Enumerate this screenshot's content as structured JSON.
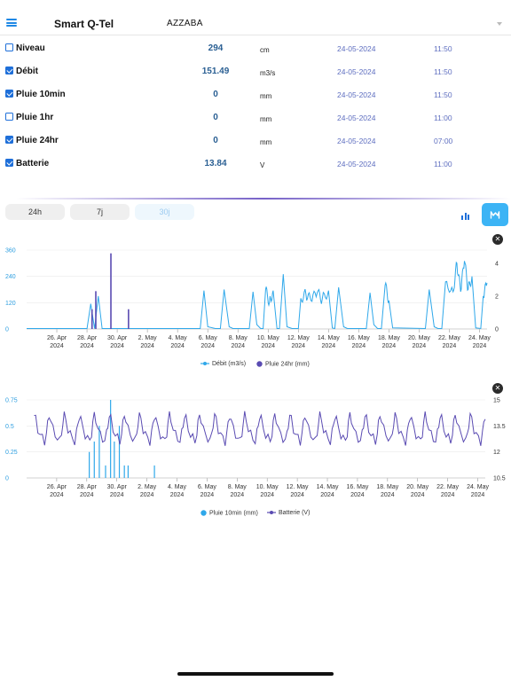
{
  "app": {
    "title": "Smart Q-Tel",
    "station": "AZZABA"
  },
  "sensors": [
    {
      "name": "Niveau",
      "checked": false,
      "value": "294",
      "unit": "cm",
      "date": "24-05-2024",
      "time": "11:50"
    },
    {
      "name": "Débit",
      "checked": true,
      "value": "151.49",
      "unit": "m3/s",
      "date": "24-05-2024",
      "time": "11:50"
    },
    {
      "name": "Pluie 10min",
      "checked": true,
      "value": "0",
      "unit": "mm",
      "date": "24-05-2024",
      "time": "11:50"
    },
    {
      "name": "Pluie 1hr",
      "checked": false,
      "value": "0",
      "unit": "mm",
      "date": "24-05-2024",
      "time": "11:00"
    },
    {
      "name": "Pluie 24hr",
      "checked": true,
      "value": "0",
      "unit": "mm",
      "date": "24-05-2024",
      "time": "07:00"
    },
    {
      "name": "Batterie",
      "checked": true,
      "value": "13.84",
      "unit": "V",
      "date": "24-05-2024",
      "time": "11:00"
    }
  ],
  "periods": {
    "p24h": "24h",
    "p7j": "7j",
    "p30j": "30j",
    "selected": "30j"
  },
  "view_mode": "line",
  "close_label": "✕",
  "colors": {
    "accent": "#1e6fd9",
    "debit": "#2fa8ea",
    "pluie24": "#5a4bb2",
    "pluie10": "#2fa8ea",
    "batterie": "#5a4bb2"
  },
  "chart_data": [
    {
      "type": "line",
      "x_ticks": [
        "26. Apr 2024",
        "28. Apr 2024",
        "30. Apr 2024",
        "2. May 2024",
        "4. May 2024",
        "6. May 2024",
        "8. May 2024",
        "10. May 2024",
        "12. May 2024",
        "14. May 2024",
        "16. May 2024",
        "18. May 2024",
        "20. May 2024",
        "22. May 2024",
        "24. May 2024"
      ],
      "x_range": [
        "2024-04-24T00:00",
        "2024-05-24T12:00"
      ],
      "y_left": {
        "ticks": [
          "0",
          "120",
          "240",
          "360"
        ],
        "lim": [
          0,
          360
        ]
      },
      "y_right": {
        "ticks": [
          "0",
          "2",
          "4"
        ],
        "lim": [
          0,
          4.8
        ]
      },
      "series": [
        {
          "name": "Débit (m3/s)",
          "axis": "left",
          "style": "line",
          "points": [
            [
              "2024-04-24",
              2
            ],
            [
              "2024-04-28T00:00",
              2
            ],
            [
              "2024-04-28T06:00",
              115
            ],
            [
              "2024-04-28T12:00",
              2
            ],
            [
              "2024-04-28T18:00",
              150
            ],
            [
              "2024-04-29T00:00",
              2
            ],
            [
              "2024-05-05T12:00",
              2
            ],
            [
              "2024-05-05T18:00",
              175
            ],
            [
              "2024-05-06T00:00",
              10
            ],
            [
              "2024-05-06T12:00",
              2
            ],
            [
              "2024-05-06T20:00",
              2
            ],
            [
              "2024-05-07T02:00",
              180
            ],
            [
              "2024-05-07T10:00",
              10
            ],
            [
              "2024-05-07T16:00",
              2
            ],
            [
              "2024-05-08T18:00",
              2
            ],
            [
              "2024-05-09T00:00",
              170
            ],
            [
              "2024-05-09T06:00",
              20
            ],
            [
              "2024-05-09T12:00",
              2
            ],
            [
              "2024-05-09T16:00",
              2
            ],
            [
              "2024-05-09T20:00",
              180
            ],
            [
              "2024-05-10T02:00",
              120
            ],
            [
              "2024-05-10T08:00",
              175
            ],
            [
              "2024-05-10T14:00",
              2
            ],
            [
              "2024-05-10T18:00",
              2
            ],
            [
              "2024-05-11T00:00",
              250
            ],
            [
              "2024-05-11T06:00",
              10
            ],
            [
              "2024-05-11T14:00",
              2
            ],
            [
              "2024-05-12T00:00",
              2
            ],
            [
              "2024-05-12T04:00",
              140
            ],
            [
              "2024-05-12T12:00",
              160
            ],
            [
              "2024-05-12T20:00",
              130
            ],
            [
              "2024-05-13T06:00",
              165
            ],
            [
              "2024-05-13T14:00",
              135
            ],
            [
              "2024-05-14T00:00",
              175
            ],
            [
              "2024-05-14T06:00",
              5
            ],
            [
              "2024-05-14T10:00",
              2
            ],
            [
              "2024-05-14T16:00",
              190
            ],
            [
              "2024-05-15T00:00",
              10
            ],
            [
              "2024-05-15T06:00",
              2
            ],
            [
              "2024-05-16T12:00",
              2
            ],
            [
              "2024-05-16T18:00",
              165
            ],
            [
              "2024-05-17T00:00",
              20
            ],
            [
              "2024-05-17T06:00",
              2
            ],
            [
              "2024-05-17T12:00",
              2
            ],
            [
              "2024-05-17T18:00",
              200
            ],
            [
              "2024-05-18T00:00",
              130
            ],
            [
              "2024-05-18T06:00",
              5
            ],
            [
              "2024-05-20T10:00",
              2
            ],
            [
              "2024-05-20T16:00",
              180
            ],
            [
              "2024-05-21T00:00",
              10
            ],
            [
              "2024-05-21T06:00",
              2
            ],
            [
              "2024-05-21T12:00",
              2
            ],
            [
              "2024-05-21T18:00",
              215
            ],
            [
              "2024-05-22T06:00",
              170
            ],
            [
              "2024-05-22T12:00",
              300
            ],
            [
              "2024-05-22T18:00",
              170
            ],
            [
              "2024-05-23T00:00",
              310
            ],
            [
              "2024-05-23T06:00",
              180
            ],
            [
              "2024-05-23T12:00",
              240
            ],
            [
              "2024-05-23T18:00",
              5
            ],
            [
              "2024-05-24T02:00",
              2
            ],
            [
              "2024-05-24T06:00",
              150
            ],
            [
              "2024-05-24T12:00",
              210
            ]
          ]
        },
        {
          "name": "Pluie 24hr (mm)",
          "axis": "right",
          "style": "bar",
          "points": [
            [
              "2024-04-28T08:00",
              1.2
            ],
            [
              "2024-04-28T14:00",
              2.3
            ],
            [
              "2024-04-29T14:00",
              4.6
            ],
            [
              "2024-04-30T18:00",
              1.2
            ]
          ]
        }
      ]
    },
    {
      "type": "line",
      "x_ticks": [
        "26. Apr 2024",
        "28. Apr 2024",
        "30. Apr 2024",
        "2. May 2024",
        "4. May 2024",
        "6. May 2024",
        "8. May 2024",
        "10. May 2024",
        "12. May 2024",
        "14. May 2024",
        "16. May 2024",
        "18. May 2024",
        "20. May 2024",
        "22. May 2024",
        "24. May 2024"
      ],
      "x_range": [
        "2024-04-24T00:00",
        "2024-05-24T12:00"
      ],
      "y_left": {
        "ticks": [
          "0",
          "0.25",
          "0.5",
          "0.75"
        ],
        "lim": [
          0,
          0.75
        ]
      },
      "y_right": {
        "ticks": [
          "10.5",
          "12",
          "13.5",
          "15"
        ],
        "lim": [
          10.5,
          15
        ]
      },
      "series": [
        {
          "name": "Pluie 10min (mm)",
          "axis": "left",
          "style": "bar",
          "points": [
            [
              "2024-04-28T04:00",
              0.25
            ],
            [
              "2024-04-28T12:00",
              0.35
            ],
            [
              "2024-04-28T20:00",
              0.5
            ],
            [
              "2024-04-29T06:00",
              0.12
            ],
            [
              "2024-04-29T14:00",
              0.75
            ],
            [
              "2024-04-29T20:00",
              0.35
            ],
            [
              "2024-04-30T04:00",
              0.5
            ],
            [
              "2024-04-30T12:00",
              0.12
            ],
            [
              "2024-04-30T18:00",
              0.12
            ],
            [
              "2024-05-02T12:00",
              0.12
            ]
          ]
        },
        {
          "name": "Batterie (V)",
          "axis": "right",
          "style": "line",
          "daily": {
            "start": "2024-04-24T12:00",
            "days": 31,
            "peak": 14.1,
            "trough": 12.6,
            "noise": 0.25
          }
        }
      ]
    }
  ]
}
